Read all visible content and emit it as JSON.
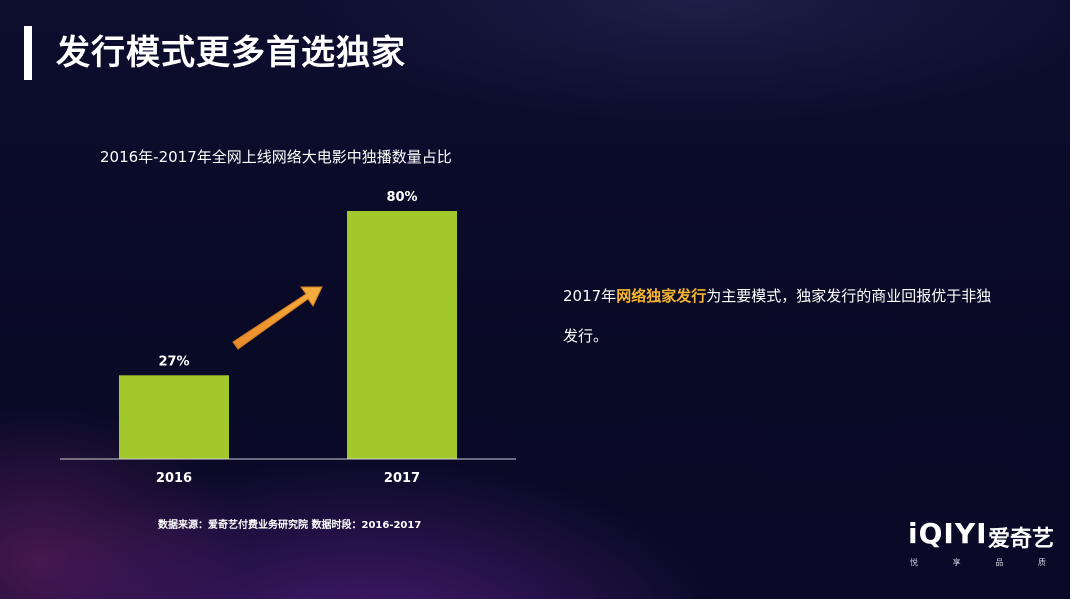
{
  "page": {
    "title": "发行模式更多首选独家"
  },
  "chart_data": {
    "type": "bar",
    "title": "2016年-2017年全网上线网络大电影中独播数量占比",
    "categories": [
      "2016",
      "2017"
    ],
    "values": [
      27,
      80
    ],
    "value_labels": [
      "27%",
      "80%"
    ],
    "ylim": [
      0,
      100
    ],
    "bar_color": "#a2c82c",
    "grid": false,
    "annotation": "orange arrow rising from 2016 bar toward 2017 bar"
  },
  "source_note": "数据来源：爱奇艺付费业务研究院  数据时段：2016-2017",
  "summary": {
    "prefix": "2017年",
    "highlight": "网络独家发行",
    "suffix": "为主要模式，独家发行的商业回报优于非独发行。"
  },
  "logo": {
    "mark": "iQIYI",
    "name": "爱奇艺",
    "slogan": [
      "悦",
      "享",
      "品",
      "质"
    ]
  },
  "colors": {
    "highlight": "#f5b52e",
    "arrow": "#f0a030"
  }
}
